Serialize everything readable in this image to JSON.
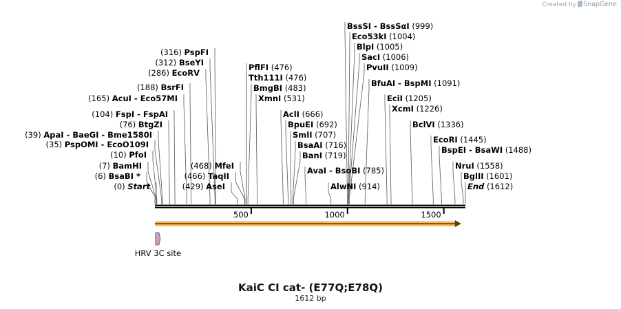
{
  "branding": {
    "created_by": "Created by",
    "product": "SnapGene"
  },
  "plasmid": {
    "name": "KaiC CI cat- (E77Q;E78Q)",
    "length_label": "1612 bp",
    "length_bp": 1612
  },
  "ruler": {
    "ticks": [
      {
        "pos": 500,
        "label": "500"
      },
      {
        "pos": 1000,
        "label": "1000"
      },
      {
        "pos": 1500,
        "label": "1500"
      }
    ]
  },
  "features": [
    {
      "name": "HRV 3C site",
      "start": 14,
      "end": 37,
      "color": "#c9a0c0"
    }
  ],
  "orf": {
    "start": 0,
    "end": 1590,
    "color": "#f3b850"
  },
  "sites": [
    {
      "pos": 0,
      "text": "Start",
      "style": "italic",
      "side": "left",
      "col": 224,
      "row": 275
    },
    {
      "pos": 6,
      "text": "BsaBI *",
      "side": "left",
      "col": 210,
      "row": 260
    },
    {
      "pos": 7,
      "text": "BamHI",
      "side": "left",
      "col": 212,
      "row": 245
    },
    {
      "pos": 10,
      "text": "PfoI",
      "side": "left",
      "col": 219,
      "row": 229
    },
    {
      "pos": 35,
      "text": "PspOMI  -  EcoO109I",
      "side": "left",
      "col": 222,
      "row": 214
    },
    {
      "pos": 39,
      "text": "ApaI  -  BaeGI  -  Bme1580I",
      "side": "left",
      "col": 227,
      "row": 200
    },
    {
      "pos": 76,
      "text": "BtgZI",
      "side": "left",
      "col": 242,
      "row": 185
    },
    {
      "pos": 104,
      "text": "FspI  -  FspAI",
      "side": "left",
      "col": 250,
      "row": 170
    },
    {
      "pos": 165,
      "text": "AcuI  -  Eco57MI",
      "side": "left",
      "col": 264,
      "row": 147
    },
    {
      "pos": 188,
      "text": "BsrFI",
      "side": "left",
      "col": 273,
      "row": 131
    },
    {
      "pos": 286,
      "text": "EcoRV",
      "side": "left",
      "col": 296,
      "row": 110
    },
    {
      "pos": 312,
      "text": "BseYI",
      "side": "left",
      "col": 302,
      "row": 95
    },
    {
      "pos": 316,
      "text": "PspFI",
      "side": "left",
      "col": 309,
      "row": 80
    },
    {
      "pos": 429,
      "text": "AseI",
      "side": "left",
      "col": 333,
      "row": 275
    },
    {
      "pos": 466,
      "text": "TaqII",
      "side": "left",
      "col": 339,
      "row": 260
    },
    {
      "pos": 468,
      "text": "MfeI",
      "side": "left",
      "col": 346,
      "row": 245
    },
    {
      "pos": 476,
      "text": "PflFI",
      "side": "right",
      "col": 361,
      "row": 102
    },
    {
      "pos": 476,
      "text": "Tth111I",
      "side": "right",
      "col": 361,
      "row": 117
    },
    {
      "pos": 483,
      "text": "BmgBI",
      "side": "right",
      "col": 368,
      "row": 132
    },
    {
      "pos": 531,
      "text": "XmnI",
      "side": "right",
      "col": 375,
      "row": 147
    },
    {
      "pos": 666,
      "text": "AclI",
      "side": "right",
      "col": 411,
      "row": 170
    },
    {
      "pos": 692,
      "text": "BpuEI",
      "side": "right",
      "col": 418,
      "row": 185
    },
    {
      "pos": 707,
      "text": "SmlI",
      "side": "right",
      "col": 425,
      "row": 200
    },
    {
      "pos": 716,
      "text": "BsaAI",
      "side": "right",
      "col": 432,
      "row": 215
    },
    {
      "pos": 719,
      "text": "BanI",
      "side": "right",
      "col": 439,
      "row": 230
    },
    {
      "pos": 785,
      "text": "AvaI  -  BsoBI",
      "side": "right",
      "col": 446,
      "row": 252
    },
    {
      "pos": 914,
      "text": "AlwNI",
      "side": "right",
      "col": 480,
      "row": 275
    },
    {
      "pos": 999,
      "text": "BssSI  -  BssSαI",
      "side": "right",
      "col": 504,
      "row": 42
    },
    {
      "pos": 1004,
      "text": "Eco53kI",
      "side": "right",
      "col": 511,
      "row": 57
    },
    {
      "pos": 1005,
      "text": "BlpI",
      "side": "right",
      "col": 518,
      "row": 72
    },
    {
      "pos": 1006,
      "text": "SacI",
      "side": "right",
      "col": 525,
      "row": 87
    },
    {
      "pos": 1009,
      "text": "PvuII",
      "side": "right",
      "col": 532,
      "row": 102
    },
    {
      "pos": 1091,
      "text": "BfuAI  -  BspMI",
      "side": "right",
      "col": 539,
      "row": 125
    },
    {
      "pos": 1205,
      "text": "EciI",
      "side": "right",
      "col": 562,
      "row": 147
    },
    {
      "pos": 1226,
      "text": "XcmI",
      "side": "right",
      "col": 569,
      "row": 162
    },
    {
      "pos": 1336,
      "text": "BclVI",
      "side": "right",
      "col": 599,
      "row": 185
    },
    {
      "pos": 1445,
      "text": "EcoRI",
      "side": "right",
      "col": 629,
      "row": 207
    },
    {
      "pos": 1488,
      "text": "BspEI  -  BsaWI",
      "side": "right",
      "col": 641,
      "row": 222
    },
    {
      "pos": 1558,
      "text": "NruI",
      "side": "right",
      "col": 661,
      "row": 245
    },
    {
      "pos": 1601,
      "text": "BglII",
      "side": "right",
      "col": 673,
      "row": 260
    },
    {
      "pos": 1612,
      "text": "End",
      "style": "italic",
      "side": "right",
      "col": 679,
      "row": 275
    }
  ]
}
